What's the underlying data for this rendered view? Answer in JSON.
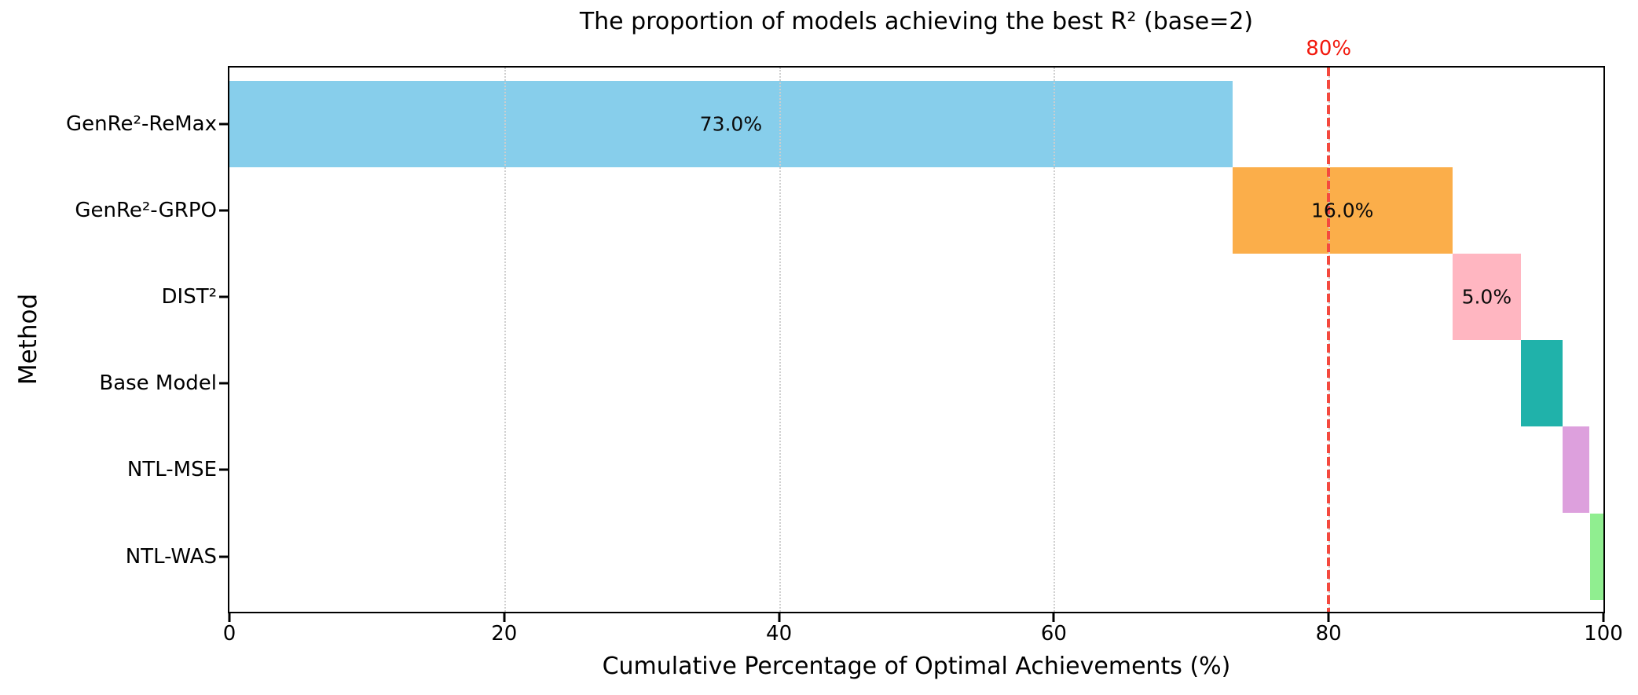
{
  "chart_data": {
    "type": "bar",
    "variant": "horizontal-cumulative-waterfall",
    "title": "The proportion of models achieving the best R² (base=2)",
    "xlabel": "Cumulative Percentage of Optimal Achievements (%)",
    "ylabel": "Method",
    "categories": [
      "GenRe²-ReMax",
      "GenRe²-GRPO",
      "DIST²",
      "Base Model",
      "NTL-MSE",
      "NTL-WAS"
    ],
    "values": [
      73,
      16,
      5,
      3,
      2,
      1
    ],
    "cumulative_ends": [
      73,
      89,
      94,
      97,
      99,
      100
    ],
    "bar_labels": [
      "73.0%",
      "16.0%",
      "5.0%",
      "",
      "",
      ""
    ],
    "colors": [
      "#87CEEB",
      "#FBAE4A",
      "#FFB6C1",
      "#20B2AA",
      "#DDA0DD",
      "#90EE90"
    ],
    "xlim": [
      0,
      100
    ],
    "xticks": [
      "0",
      "20",
      "40",
      "60",
      "80",
      "100"
    ],
    "xtick_values": [
      0,
      20,
      40,
      60,
      80,
      100
    ],
    "grid": "vertical dotted light-gray at x ticks",
    "legend": "none",
    "reference_line": {
      "x": 80,
      "label": "80%",
      "color": "#F44336",
      "style": "dashed"
    }
  }
}
